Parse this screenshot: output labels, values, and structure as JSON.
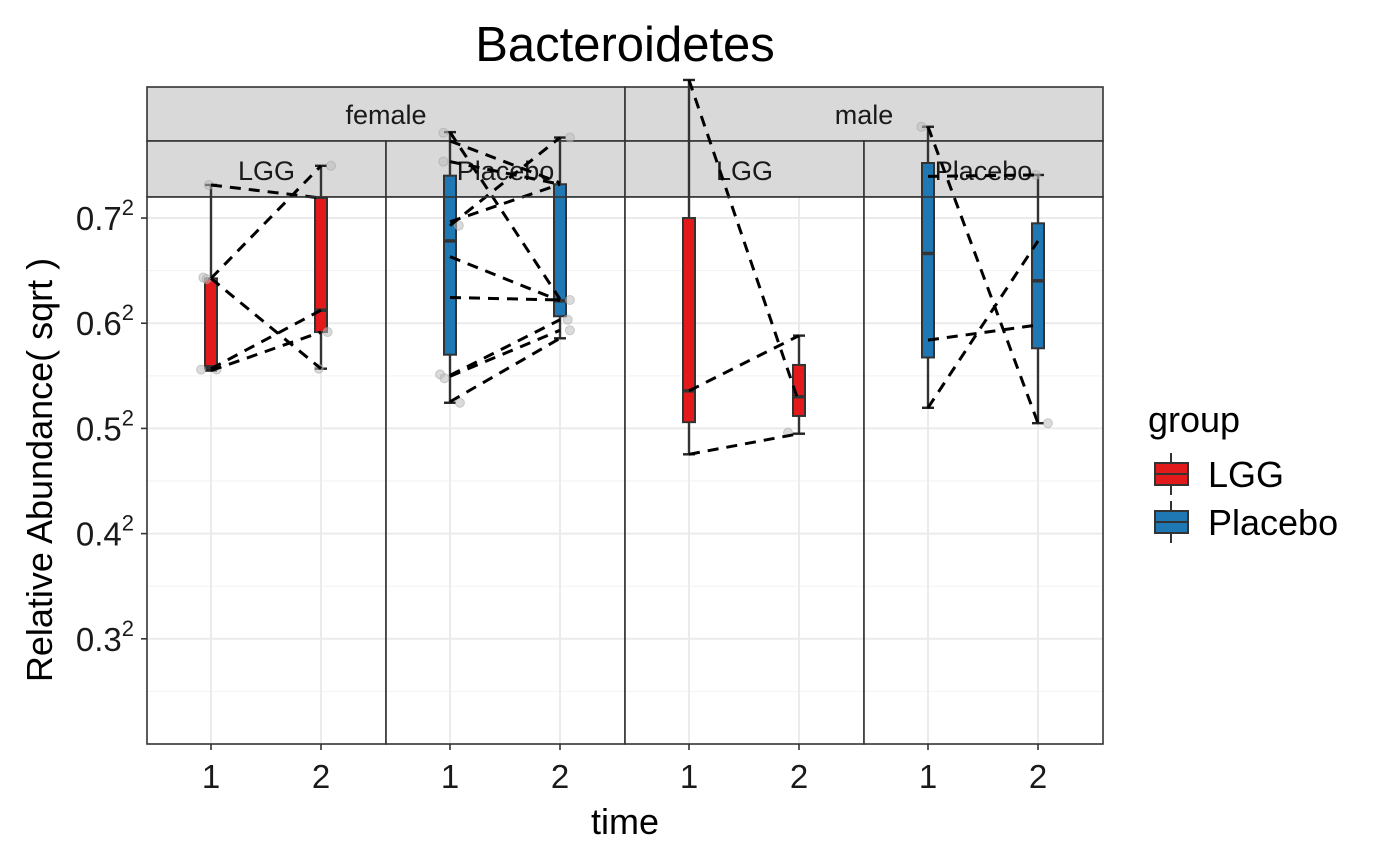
{
  "chart_data": {
    "type": "box",
    "title": "Bacteroidetes",
    "xlabel": "time",
    "ylabel": "Relative Abundance( sqrt )",
    "y_scale": "sqrt",
    "y_range_sqrt": [
      0.2,
      0.72
    ],
    "y_ticks": [
      {
        "value": 0.7,
        "base": "0.7",
        "exp": "2"
      },
      {
        "value": 0.6,
        "base": "0.6",
        "exp": "2"
      },
      {
        "value": 0.5,
        "base": "0.5",
        "exp": "2"
      },
      {
        "value": 0.4,
        "base": "0.4",
        "exp": "2"
      },
      {
        "value": 0.3,
        "base": "0.3",
        "exp": "2"
      }
    ],
    "x_categories": [
      "1",
      "2"
    ],
    "grid": true,
    "facet_rows": [
      "female",
      "male"
    ],
    "legend": {
      "title": "group",
      "placement": "right",
      "items": [
        {
          "label": "LGG",
          "color": "#e31a1c"
        },
        {
          "label": "Placebo",
          "color": "#1f78b4"
        }
      ]
    },
    "panels": [
      {
        "sex": "female",
        "group": "LGG",
        "color": "#e31a1c",
        "boxes": [
          {
            "time": "1",
            "min": 0.308,
            "q1": 0.31,
            "median": 0.312,
            "q3": 0.413,
            "max": 0.535
          },
          {
            "time": "2",
            "min": 0.31,
            "q1": 0.35,
            "median": 0.375,
            "q3": 0.517,
            "max": 0.562
          }
        ],
        "points": [
          {
            "time": "1",
            "value": 0.414,
            "dx": -0.07
          },
          {
            "time": "1",
            "value": 0.412,
            "dx": -0.04
          },
          {
            "time": "1",
            "value": 0.309,
            "dx": -0.09
          },
          {
            "time": "1",
            "value": 0.309,
            "dx": 0.05
          },
          {
            "time": "1",
            "value": 0.535,
            "dx": -0.02
          },
          {
            "time": "2",
            "value": 0.562,
            "dx": 0.09
          },
          {
            "time": "2",
            "value": 0.35,
            "dx": 0.06
          },
          {
            "time": "2",
            "value": 0.31,
            "dx": -0.02
          }
        ],
        "pairs": [
          [
            0.535,
            0.517
          ],
          [
            0.413,
            0.562
          ],
          [
            0.413,
            0.31
          ],
          [
            0.31,
            0.375
          ],
          [
            0.308,
            0.35
          ]
        ]
      },
      {
        "sex": "female",
        "group": "Placebo",
        "color": "#1f78b4",
        "boxes": [
          {
            "time": "1",
            "min": 0.275,
            "q1": 0.325,
            "median": 0.46,
            "q3": 0.548,
            "max": 0.611
          },
          {
            "time": "2",
            "min": 0.343,
            "q1": 0.368,
            "median": 0.386,
            "q3": 0.536,
            "max": 0.603
          }
        ],
        "points": [
          {
            "time": "1",
            "value": 0.61,
            "dx": -0.06
          },
          {
            "time": "1",
            "value": 0.568,
            "dx": -0.06
          },
          {
            "time": "1",
            "value": 0.48,
            "dx": 0.08
          },
          {
            "time": "1",
            "value": 0.304,
            "dx": -0.09
          },
          {
            "time": "1",
            "value": 0.3,
            "dx": -0.05
          },
          {
            "time": "1",
            "value": 0.275,
            "dx": 0.09
          },
          {
            "time": "2",
            "value": 0.603,
            "dx": 0.09
          },
          {
            "time": "2",
            "value": 0.387,
            "dx": 0.09
          },
          {
            "time": "2",
            "value": 0.364,
            "dx": 0.07
          },
          {
            "time": "2",
            "value": 0.352,
            "dx": 0.09
          }
        ],
        "pairs": [
          [
            0.611,
            0.388
          ],
          [
            0.598,
            0.538
          ],
          [
            0.568,
            0.536
          ],
          [
            0.48,
            0.603
          ],
          [
            0.485,
            0.536
          ],
          [
            0.44,
            0.386
          ],
          [
            0.39,
            0.387
          ],
          [
            0.303,
            0.364
          ],
          [
            0.302,
            0.352
          ],
          [
            0.276,
            0.343
          ]
        ]
      },
      {
        "sex": "male",
        "group": "LGG",
        "color": "#e31a1c",
        "boxes": [
          {
            "time": "1",
            "min": 0.226,
            "q1": 0.256,
            "median": 0.287,
            "q3": 0.49,
            "max": 0.691
          },
          {
            "time": "2",
            "min": 0.245,
            "q1": 0.262,
            "median": 0.281,
            "q3": 0.314,
            "max": 0.346
          }
        ],
        "points": [
          {
            "time": "2",
            "value": 0.246,
            "dx": -0.1
          }
        ],
        "pairs": [
          [
            0.691,
            0.275
          ],
          [
            0.287,
            0.346
          ],
          [
            0.226,
            0.245
          ]
        ]
      },
      {
        "sex": "male",
        "group": "Placebo",
        "color": "#1f78b4",
        "boxes": [
          {
            "time": "1",
            "min": 0.27,
            "q1": 0.322,
            "median": 0.444,
            "q3": 0.566,
            "max": 0.619
          },
          {
            "time": "2",
            "min": 0.255,
            "q1": 0.332,
            "median": 0.41,
            "q3": 0.483,
            "max": 0.549
          }
        ],
        "points": [
          {
            "time": "1",
            "value": 0.619,
            "dx": -0.06
          },
          {
            "time": "2",
            "value": 0.549,
            "dx": -0.02
          },
          {
            "time": "2",
            "value": 0.255,
            "dx": 0.09
          }
        ],
        "pairs": [
          [
            0.619,
            0.255
          ],
          [
            0.547,
            0.549
          ],
          [
            0.341,
            0.358
          ],
          [
            0.27,
            0.46
          ]
        ]
      }
    ]
  }
}
